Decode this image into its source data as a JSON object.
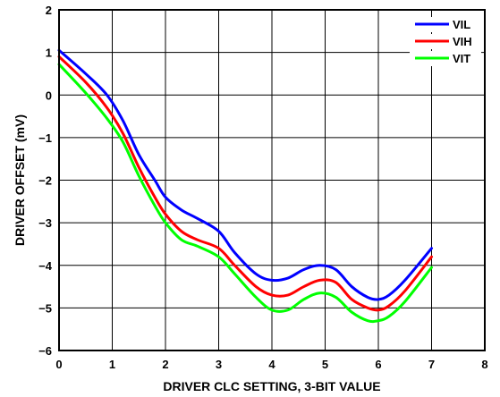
{
  "chart_data": {
    "type": "line",
    "xlabel": "DRIVER CLC SETTING, 3-BIT VALUE",
    "ylabel": "DRIVER OFFSET (mV)",
    "xlim": [
      0,
      8
    ],
    "ylim": [
      -6,
      2
    ],
    "xticks": [
      "0",
      "1",
      "2",
      "3",
      "4",
      "5",
      "6",
      "7",
      "8"
    ],
    "yticks": [
      "2",
      "1",
      "0",
      "−1",
      "−2",
      "−3",
      "−4",
      "−5",
      "−6"
    ],
    "grid": true,
    "legend_position": "top-right",
    "series": [
      {
        "name": "VIL",
        "color": "#0000ff",
        "x": [
          0,
          0.5,
          0.9,
          1.2,
          1.5,
          1.8,
          2.0,
          2.3,
          2.6,
          3.0,
          3.3,
          3.7,
          4.0,
          4.3,
          4.6,
          4.9,
          5.2,
          5.5,
          5.8,
          6.0,
          6.2,
          6.5,
          7.0
        ],
        "y": [
          1.05,
          0.5,
          0.0,
          -0.6,
          -1.4,
          -2.0,
          -2.4,
          -2.7,
          -2.9,
          -3.2,
          -3.7,
          -4.2,
          -4.35,
          -4.3,
          -4.1,
          -4.0,
          -4.1,
          -4.5,
          -4.75,
          -4.8,
          -4.7,
          -4.35,
          -3.6
        ]
      },
      {
        "name": "VIH",
        "color": "#ff0000",
        "x": [
          0,
          0.5,
          0.9,
          1.2,
          1.5,
          1.8,
          2.0,
          2.3,
          2.6,
          3.0,
          3.3,
          3.7,
          4.0,
          4.3,
          4.6,
          4.9,
          5.2,
          5.5,
          5.8,
          6.0,
          6.2,
          6.5,
          7.0
        ],
        "y": [
          0.9,
          0.3,
          -0.3,
          -0.9,
          -1.7,
          -2.4,
          -2.8,
          -3.2,
          -3.4,
          -3.6,
          -4.0,
          -4.5,
          -4.7,
          -4.7,
          -4.5,
          -4.35,
          -4.4,
          -4.8,
          -5.0,
          -5.05,
          -4.95,
          -4.6,
          -3.8
        ]
      },
      {
        "name": "VIT",
        "color": "#00ff00",
        "x": [
          0,
          0.5,
          0.9,
          1.2,
          1.5,
          1.8,
          2.0,
          2.3,
          2.6,
          3.0,
          3.3,
          3.7,
          4.0,
          4.3,
          4.6,
          4.9,
          5.2,
          5.5,
          5.8,
          6.0,
          6.2,
          6.5,
          7.0
        ],
        "y": [
          0.72,
          0.05,
          -0.55,
          -1.1,
          -1.9,
          -2.6,
          -3.0,
          -3.4,
          -3.55,
          -3.8,
          -4.2,
          -4.75,
          -5.05,
          -5.05,
          -4.8,
          -4.65,
          -4.75,
          -5.1,
          -5.3,
          -5.3,
          -5.2,
          -4.85,
          -4.05
        ]
      }
    ]
  }
}
